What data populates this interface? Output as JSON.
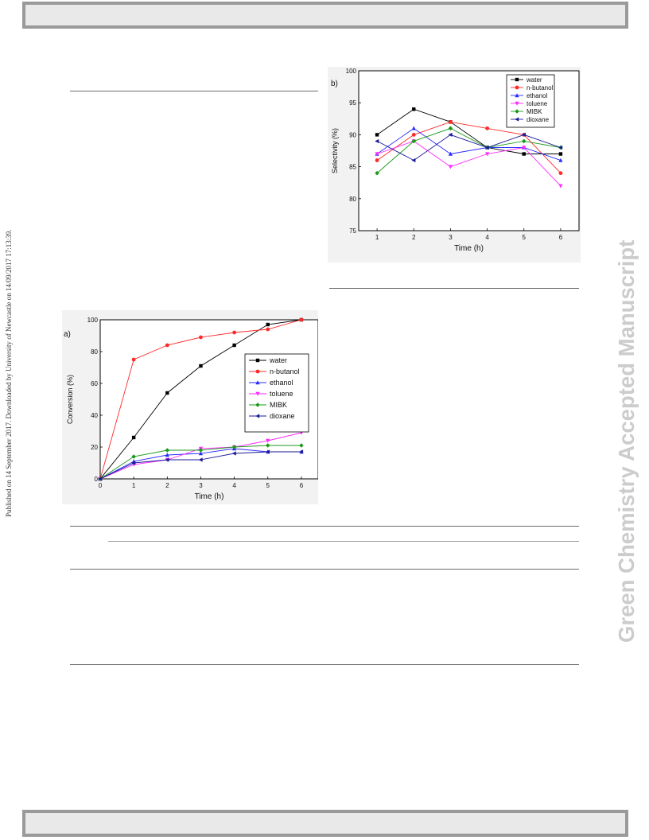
{
  "side_note": "Published on 14 September 2017. Downloaded by University of Newcastle on 14/09/2017 17:13:39.",
  "watermark": "Green Chemistry Accepted Manuscript",
  "chart_data": [
    {
      "type": "line",
      "panel_label": "a)",
      "xlabel": "Time (h)",
      "ylabel": "Conversion (%)",
      "xlim": [
        0,
        6.5
      ],
      "ylim": [
        0,
        100
      ],
      "xticks": [
        0,
        1,
        2,
        3,
        4,
        5,
        6
      ],
      "yticks": [
        0,
        20,
        40,
        60,
        80,
        100
      ],
      "legend_position": "center-right",
      "x": [
        0,
        1,
        2,
        3,
        4,
        5,
        6
      ],
      "series": [
        {
          "name": "water",
          "color": "#000000",
          "marker": "square",
          "values": [
            0,
            26,
            54,
            71,
            84,
            97,
            100
          ]
        },
        {
          "name": "n-butanol",
          "color": "#ff2a2a",
          "marker": "circle",
          "values": [
            0,
            75,
            84,
            89,
            92,
            94,
            100
          ]
        },
        {
          "name": "ethanol",
          "color": "#2a2aff",
          "marker": "triangle-up",
          "values": [
            0,
            11,
            15,
            16,
            19,
            17,
            17
          ]
        },
        {
          "name": "toluene",
          "color": "#ff2aff",
          "marker": "triangle-down",
          "values": [
            0,
            9,
            12,
            19,
            20,
            24,
            29
          ]
        },
        {
          "name": "MIBK",
          "color": "#1a9a1a",
          "marker": "diamond",
          "values": [
            0,
            14,
            18,
            18,
            20,
            21,
            21
          ]
        },
        {
          "name": "dioxane",
          "color": "#1a1a99",
          "marker": "triangle-left",
          "values": [
            0,
            10,
            12,
            12,
            16,
            17,
            17
          ]
        }
      ]
    },
    {
      "type": "line",
      "panel_label": "b)",
      "xlabel": "Time (h)",
      "ylabel": "Selectivity (%)",
      "xlim": [
        0.5,
        6.5
      ],
      "ylim": [
        75,
        100
      ],
      "xticks": [
        1,
        2,
        3,
        4,
        5,
        6
      ],
      "yticks": [
        75,
        80,
        85,
        90,
        95,
        100
      ],
      "legend_position": "top-right",
      "x": [
        1,
        2,
        3,
        4,
        5,
        6
      ],
      "series": [
        {
          "name": "water",
          "color": "#000000",
          "marker": "square",
          "values": [
            90,
            94,
            92,
            88,
            87,
            87
          ]
        },
        {
          "name": "n-butanol",
          "color": "#ff2a2a",
          "marker": "circle",
          "values": [
            86,
            90,
            92,
            91,
            90,
            84
          ]
        },
        {
          "name": "ethanol",
          "color": "#2a2aff",
          "marker": "triangle-up",
          "values": [
            87,
            91,
            87,
            88,
            88,
            86
          ]
        },
        {
          "name": "toluene",
          "color": "#ff2aff",
          "marker": "triangle-down",
          "values": [
            87,
            89,
            85,
            87,
            88,
            82
          ]
        },
        {
          "name": "MIBK",
          "color": "#1a9a1a",
          "marker": "diamond",
          "values": [
            84,
            89,
            91,
            88,
            89,
            88
          ]
        },
        {
          "name": "dioxane",
          "color": "#1a1a99",
          "marker": "triangle-left",
          "values": [
            89,
            86,
            90,
            88,
            90,
            88
          ]
        }
      ]
    }
  ]
}
